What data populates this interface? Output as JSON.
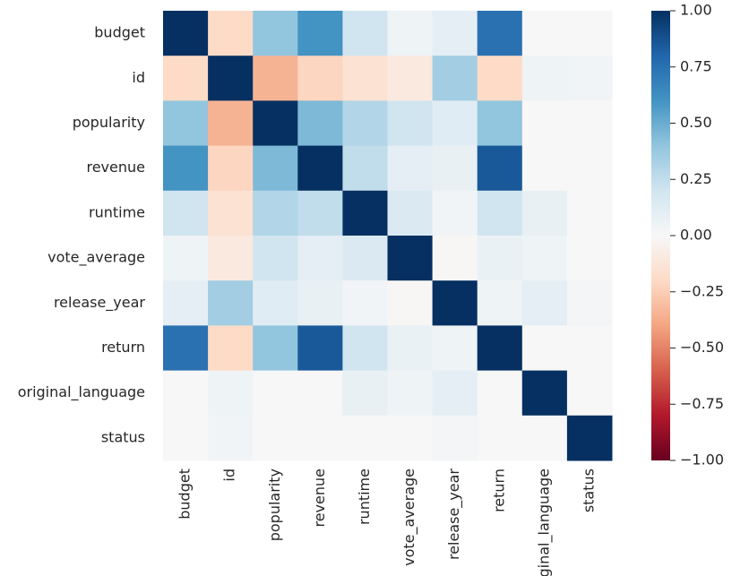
{
  "chart_data": {
    "type": "heatmap",
    "xcategories": [
      "budget",
      "id",
      "popularity",
      "revenue",
      "runtime",
      "vote_average",
      "release_year",
      "return",
      "original_language",
      "status"
    ],
    "ycategories": [
      "budget",
      "id",
      "popularity",
      "revenue",
      "runtime",
      "vote_average",
      "release_year",
      "return",
      "original_language",
      "status"
    ],
    "values": [
      [
        1,
        -0.2,
        0.4,
        0.6,
        0.2,
        0.05,
        0.1,
        0.75,
        0,
        0
      ],
      [
        -0.2,
        1,
        -0.35,
        -0.22,
        -0.15,
        -0.1,
        0.35,
        -0.2,
        0.05,
        0.03
      ],
      [
        0.4,
        -0.35,
        1,
        0.45,
        0.3,
        0.2,
        0.12,
        0.4,
        0,
        0
      ],
      [
        0.6,
        -0.22,
        0.45,
        1,
        0.25,
        0.1,
        0.08,
        0.85,
        0,
        0
      ],
      [
        0.2,
        -0.15,
        0.3,
        0.25,
        1,
        0.15,
        0.03,
        0.2,
        0.08,
        0
      ],
      [
        0.05,
        -0.1,
        0.2,
        0.1,
        0.15,
        1,
        -0.01,
        0.07,
        0.05,
        0
      ],
      [
        0.1,
        0.35,
        0.12,
        0.08,
        0.03,
        -0.01,
        1,
        0.05,
        0.1,
        0.02
      ],
      [
        0.75,
        -0.2,
        0.4,
        0.85,
        0.2,
        0.07,
        0.05,
        1,
        0,
        0
      ],
      [
        0,
        0.05,
        0,
        0,
        0.08,
        0.05,
        0.1,
        0,
        1,
        0
      ],
      [
        0,
        0.03,
        0,
        0,
        0,
        0,
        0.02,
        0,
        0,
        1
      ]
    ],
    "colorscale": [
      "#67001f",
      "#b2182b",
      "#d6604d",
      "#f4a582",
      "#fddbc7",
      "#f7f7f7",
      "#d1e5f0",
      "#92c5de",
      "#4393c3",
      "#2166ac",
      "#053061"
    ],
    "zlim": [
      -1,
      1
    ],
    "zticks": [
      {
        "value": 1,
        "label": "1.00"
      },
      {
        "value": 0.75,
        "label": "0.75"
      },
      {
        "value": 0.5,
        "label": "0.50"
      },
      {
        "value": 0.25,
        "label": "0.25"
      },
      {
        "value": 0,
        "label": "0.00"
      },
      {
        "value": -0.25,
        "label": "−0.25"
      },
      {
        "value": -0.5,
        "label": "−0.50"
      },
      {
        "value": -0.75,
        "label": "−0.75"
      },
      {
        "value": -1,
        "label": "−1.00"
      }
    ]
  }
}
